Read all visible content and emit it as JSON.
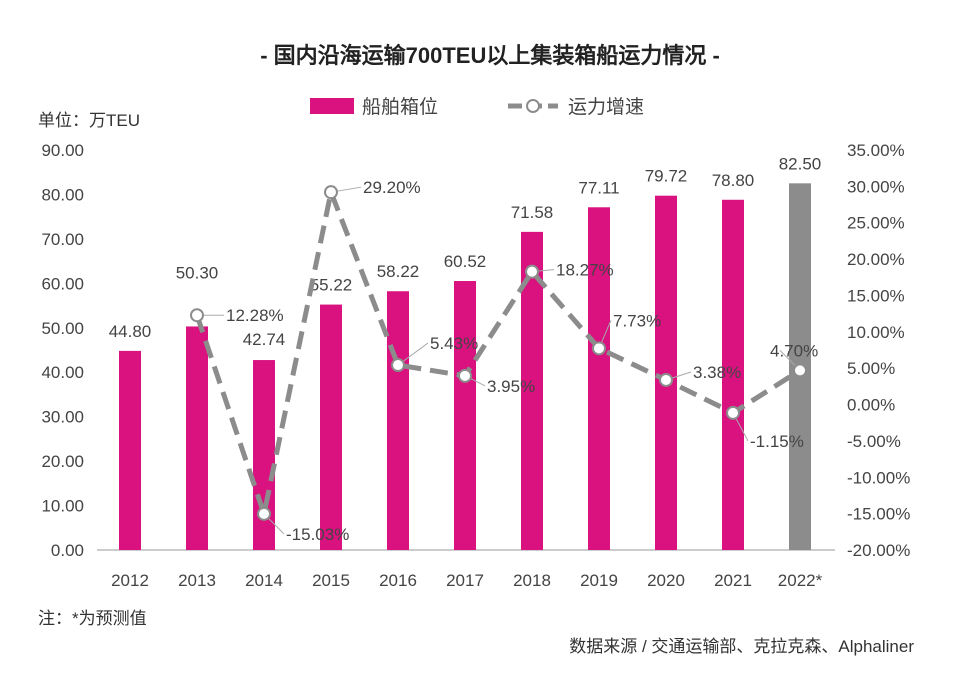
{
  "chart_data": {
    "type": "bar+line",
    "title": "- 国内沿海运输700TEU以上集装箱船运力情况 -",
    "unit_label": "单位：万TEU",
    "categories": [
      "2012",
      "2013",
      "2014",
      "2015",
      "2016",
      "2017",
      "2018",
      "2019",
      "2020",
      "2021",
      "2022*"
    ],
    "series": [
      {
        "name": "船舶箱位",
        "type": "bar",
        "axis": "left",
        "values": [
          44.8,
          50.3,
          42.74,
          55.22,
          58.22,
          60.52,
          71.58,
          77.11,
          79.72,
          78.8,
          82.5
        ],
        "labels": [
          "44.80",
          "50.30",
          "42.74",
          "55.22",
          "58.22",
          "60.52",
          "71.58",
          "77.11",
          "79.72",
          "78.80",
          "82.50"
        ],
        "color": "#d9127f",
        "forecast_color": "#8c8c8c"
      },
      {
        "name": "运力增速",
        "type": "line",
        "axis": "right",
        "values": [
          null,
          12.28,
          -15.03,
          29.2,
          5.43,
          3.95,
          18.27,
          7.73,
          3.38,
          -1.15,
          4.7
        ],
        "labels": [
          "",
          "12.28%",
          "-15.03%",
          "29.20%",
          "5.43%",
          "3.95%",
          "18.27%",
          "7.73%",
          "3.38%",
          "-1.15%",
          "4.70%"
        ],
        "color": "#8c8c8c",
        "style": "dashed"
      }
    ],
    "left_axis": {
      "ylim": [
        0,
        90
      ],
      "ticks": [
        "0.00",
        "10.00",
        "20.00",
        "30.00",
        "40.00",
        "50.00",
        "60.00",
        "70.00",
        "80.00",
        "90.00"
      ]
    },
    "right_axis": {
      "ylim": [
        -20,
        35
      ],
      "ticks": [
        "-20.00%",
        "-15.00%",
        "-10.00%",
        "-5.00%",
        "0.00%",
        "5.00%",
        "10.00%",
        "15.00%",
        "20.00%",
        "25.00%",
        "30.00%",
        "35.00%"
      ]
    },
    "legend_position": "top-center",
    "grid": false
  },
  "note": "注：*为预测值",
  "source": "数据来源 / 交通运输部、克拉克森、Alphaliner"
}
